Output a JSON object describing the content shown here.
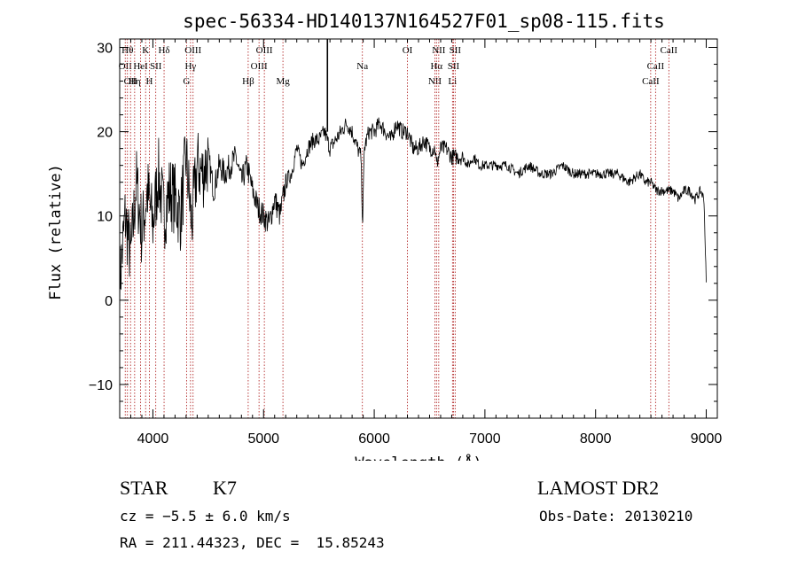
{
  "chart_data": {
    "type": "line",
    "title": "spec-56334-HD140137N164527F01_sp08-115.fits",
    "xlabel": "Wavelength (Å)",
    "ylabel": "Flux (relative)",
    "xlim": [
      3700,
      9100
    ],
    "ylim": [
      -14,
      31
    ],
    "x_ticks": [
      {
        "value": 4000,
        "label": "4000"
      },
      {
        "value": 5000,
        "label": "5000"
      },
      {
        "value": 6000,
        "label": "6000"
      },
      {
        "value": 7000,
        "label": "7000"
      },
      {
        "value": 8000,
        "label": "8000"
      },
      {
        "value": 9000,
        "label": "9000"
      }
    ],
    "y_ticks": [
      {
        "value": -10,
        "label": "−10"
      },
      {
        "value": 0,
        "label": "0"
      },
      {
        "value": 10,
        "label": "10"
      },
      {
        "value": 20,
        "label": "20"
      },
      {
        "value": 30,
        "label": "30"
      }
    ],
    "grid": false,
    "series": [
      {
        "x": [
          3700,
          3750,
          3800,
          3850,
          3900,
          3950,
          4000,
          4050,
          4100,
          4150,
          4200,
          4250,
          4300,
          4350,
          4400,
          4450,
          4500,
          4550,
          4600,
          4650,
          4700,
          4750,
          4800,
          4850,
          4900,
          4950,
          5000,
          5050,
          5100,
          5150,
          5200,
          5250,
          5300,
          5350,
          5400,
          5450,
          5500,
          5550,
          5600,
          5650,
          5700,
          5750,
          5800,
          5850,
          5880,
          5895,
          5910,
          5950,
          6000,
          6050,
          6100,
          6150,
          6200,
          6250,
          6300,
          6350,
          6400,
          6450,
          6500,
          6550,
          6563,
          6600,
          6650,
          6700,
          6750,
          6800,
          6850,
          6900,
          6950,
          7000,
          7100,
          7200,
          7300,
          7400,
          7500,
          7600,
          7700,
          7800,
          7900,
          8000,
          8100,
          8200,
          8300,
          8400,
          8450,
          8500,
          8550,
          8600,
          8650,
          8700,
          8750,
          8800,
          8850,
          8900,
          8950,
          8980,
          9000
        ],
        "y": [
          2,
          10,
          5,
          14,
          8,
          13,
          9,
          15,
          10,
          13,
          12,
          10,
          17,
          9,
          16,
          15,
          17,
          13,
          16,
          15,
          16,
          17,
          14,
          16,
          13,
          11,
          10,
          9,
          12,
          10,
          14,
          15,
          18,
          16,
          18,
          19,
          19,
          20,
          18,
          19,
          20,
          21,
          20,
          18,
          17,
          9,
          18,
          20,
          20,
          21,
          20,
          19,
          21,
          20,
          20,
          18,
          18,
          19,
          18,
          18,
          16,
          18,
          18,
          17,
          17,
          17,
          16,
          17,
          16,
          16,
          16,
          16,
          15,
          16,
          15,
          15,
          16,
          15,
          15,
          15,
          15,
          15,
          14,
          15,
          14,
          14,
          13,
          13,
          13,
          13,
          12,
          13,
          13,
          12,
          13,
          12,
          2
        ]
      }
    ],
    "lines": [
      {
        "x": 3750,
        "label": "OII",
        "row": 2
      },
      {
        "x": 3770,
        "label": "Hθ",
        "row": 1
      },
      {
        "x": 3798,
        "label": "OII",
        "row": 3
      },
      {
        "x": 3835,
        "label": "Hη",
        "row": 3
      },
      {
        "x": 3889,
        "label": "HeI",
        "row": 2
      },
      {
        "x": 3934,
        "label": "K",
        "row": 1
      },
      {
        "x": 3968,
        "label": "H",
        "row": 3
      },
      {
        "x": 4026,
        "label": "SII",
        "row": 2
      },
      {
        "x": 4101,
        "label": "Hδ",
        "row": 1
      },
      {
        "x": 4304,
        "label": "G",
        "row": 3
      },
      {
        "x": 4340,
        "label": "Hγ",
        "row": 2
      },
      {
        "x": 4363,
        "label": "OIII",
        "row": 1
      },
      {
        "x": 4861,
        "label": "Hβ",
        "row": 3
      },
      {
        "x": 4959,
        "label": "OIII",
        "row": 2
      },
      {
        "x": 5007,
        "label": "OIII",
        "row": 1
      },
      {
        "x": 5175,
        "label": "Mg",
        "row": 3
      },
      {
        "x": 5893,
        "label": "Na",
        "row": 2
      },
      {
        "x": 6300,
        "label": "OI",
        "row": 1
      },
      {
        "x": 6548,
        "label": "NII",
        "row": 3
      },
      {
        "x": 6563,
        "label": "Hα",
        "row": 2
      },
      {
        "x": 6583,
        "label": "NII",
        "row": 1
      },
      {
        "x": 6707,
        "label": "Li",
        "row": 3
      },
      {
        "x": 6716,
        "label": "SII",
        "row": 2
      },
      {
        "x": 6731,
        "label": "SII",
        "row": 1
      },
      {
        "x": 8498,
        "label": "CaII",
        "row": 3
      },
      {
        "x": 8542,
        "label": "CaII",
        "row": 2
      },
      {
        "x": 8662,
        "label": "CaII",
        "row": 1
      }
    ],
    "spike_x": 5577
  },
  "info": {
    "class": "STAR",
    "subclass": "K7",
    "survey": "LAMOST DR2",
    "cz": "cz = −5.5 ± 6.0 km/s",
    "obs_date": "Obs-Date: 20130210",
    "coords": "RA = 211.44323, DEC =  15.85243"
  }
}
